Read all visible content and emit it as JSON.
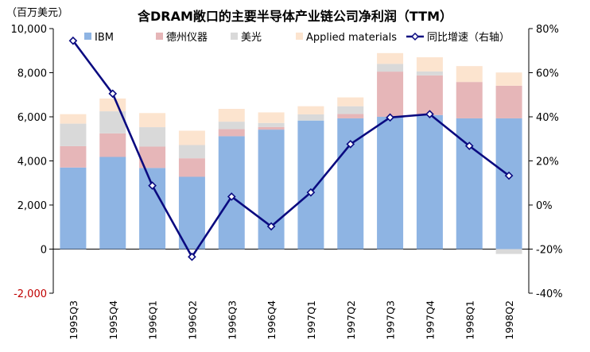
{
  "chart_data": {
    "type": "bar",
    "stacked": true,
    "title": "含DRAM敞口的主要半导体产业链公司净利润（TTM）",
    "unit_label": "（百万美元）",
    "categories": [
      "1995Q3",
      "1995Q4",
      "1996Q1",
      "1996Q2",
      "1996Q3",
      "1996Q4",
      "1997Q1",
      "1997Q2",
      "1997Q3",
      "1997Q4",
      "1998Q1",
      "1998Q2"
    ],
    "series": [
      {
        "name": "IBM",
        "color": "#8eb4e3",
        "values": [
          3700,
          4180,
          3680,
          3280,
          5120,
          5420,
          5830,
          5930,
          6000,
          6080,
          5930,
          5930
        ]
      },
      {
        "name": "德州仪器",
        "color": "#e6b6b8",
        "values": [
          970,
          1070,
          970,
          840,
          320,
          120,
          0,
          200,
          2050,
          1800,
          1650,
          1480
        ]
      },
      {
        "name": "美光",
        "color": "#d9d9d9",
        "values": [
          1020,
          1000,
          880,
          600,
          340,
          180,
          280,
          350,
          350,
          180,
          0,
          -220
        ]
      },
      {
        "name": "Applied materials",
        "color": "#fce4cf",
        "values": [
          430,
          580,
          640,
          650,
          580,
          480,
          370,
          400,
          490,
          640,
          720,
          600
        ]
      }
    ],
    "line_series": {
      "name": "同比增速（右轴）",
      "color": "#0a0a80",
      "values": [
        74.5,
        50.5,
        8.8,
        -23.5,
        3.8,
        -9.7,
        5.7,
        27.6,
        39.7,
        41.2,
        26.8,
        13.3
      ]
    },
    "y_left": {
      "min": -2000,
      "max": 10000,
      "step": 2000,
      "ticks": [
        "-2,000",
        "0",
        "2,000",
        "4,000",
        "6,000",
        "8,000",
        "10,000"
      ]
    },
    "y_right": {
      "min": -40,
      "max": 80,
      "step": 20,
      "ticks": [
        "-40%",
        "-20%",
        "0%",
        "20%",
        "40%",
        "60%",
        "80%"
      ]
    },
    "negative_tick_color": "#c00000",
    "legend_position": "top"
  }
}
